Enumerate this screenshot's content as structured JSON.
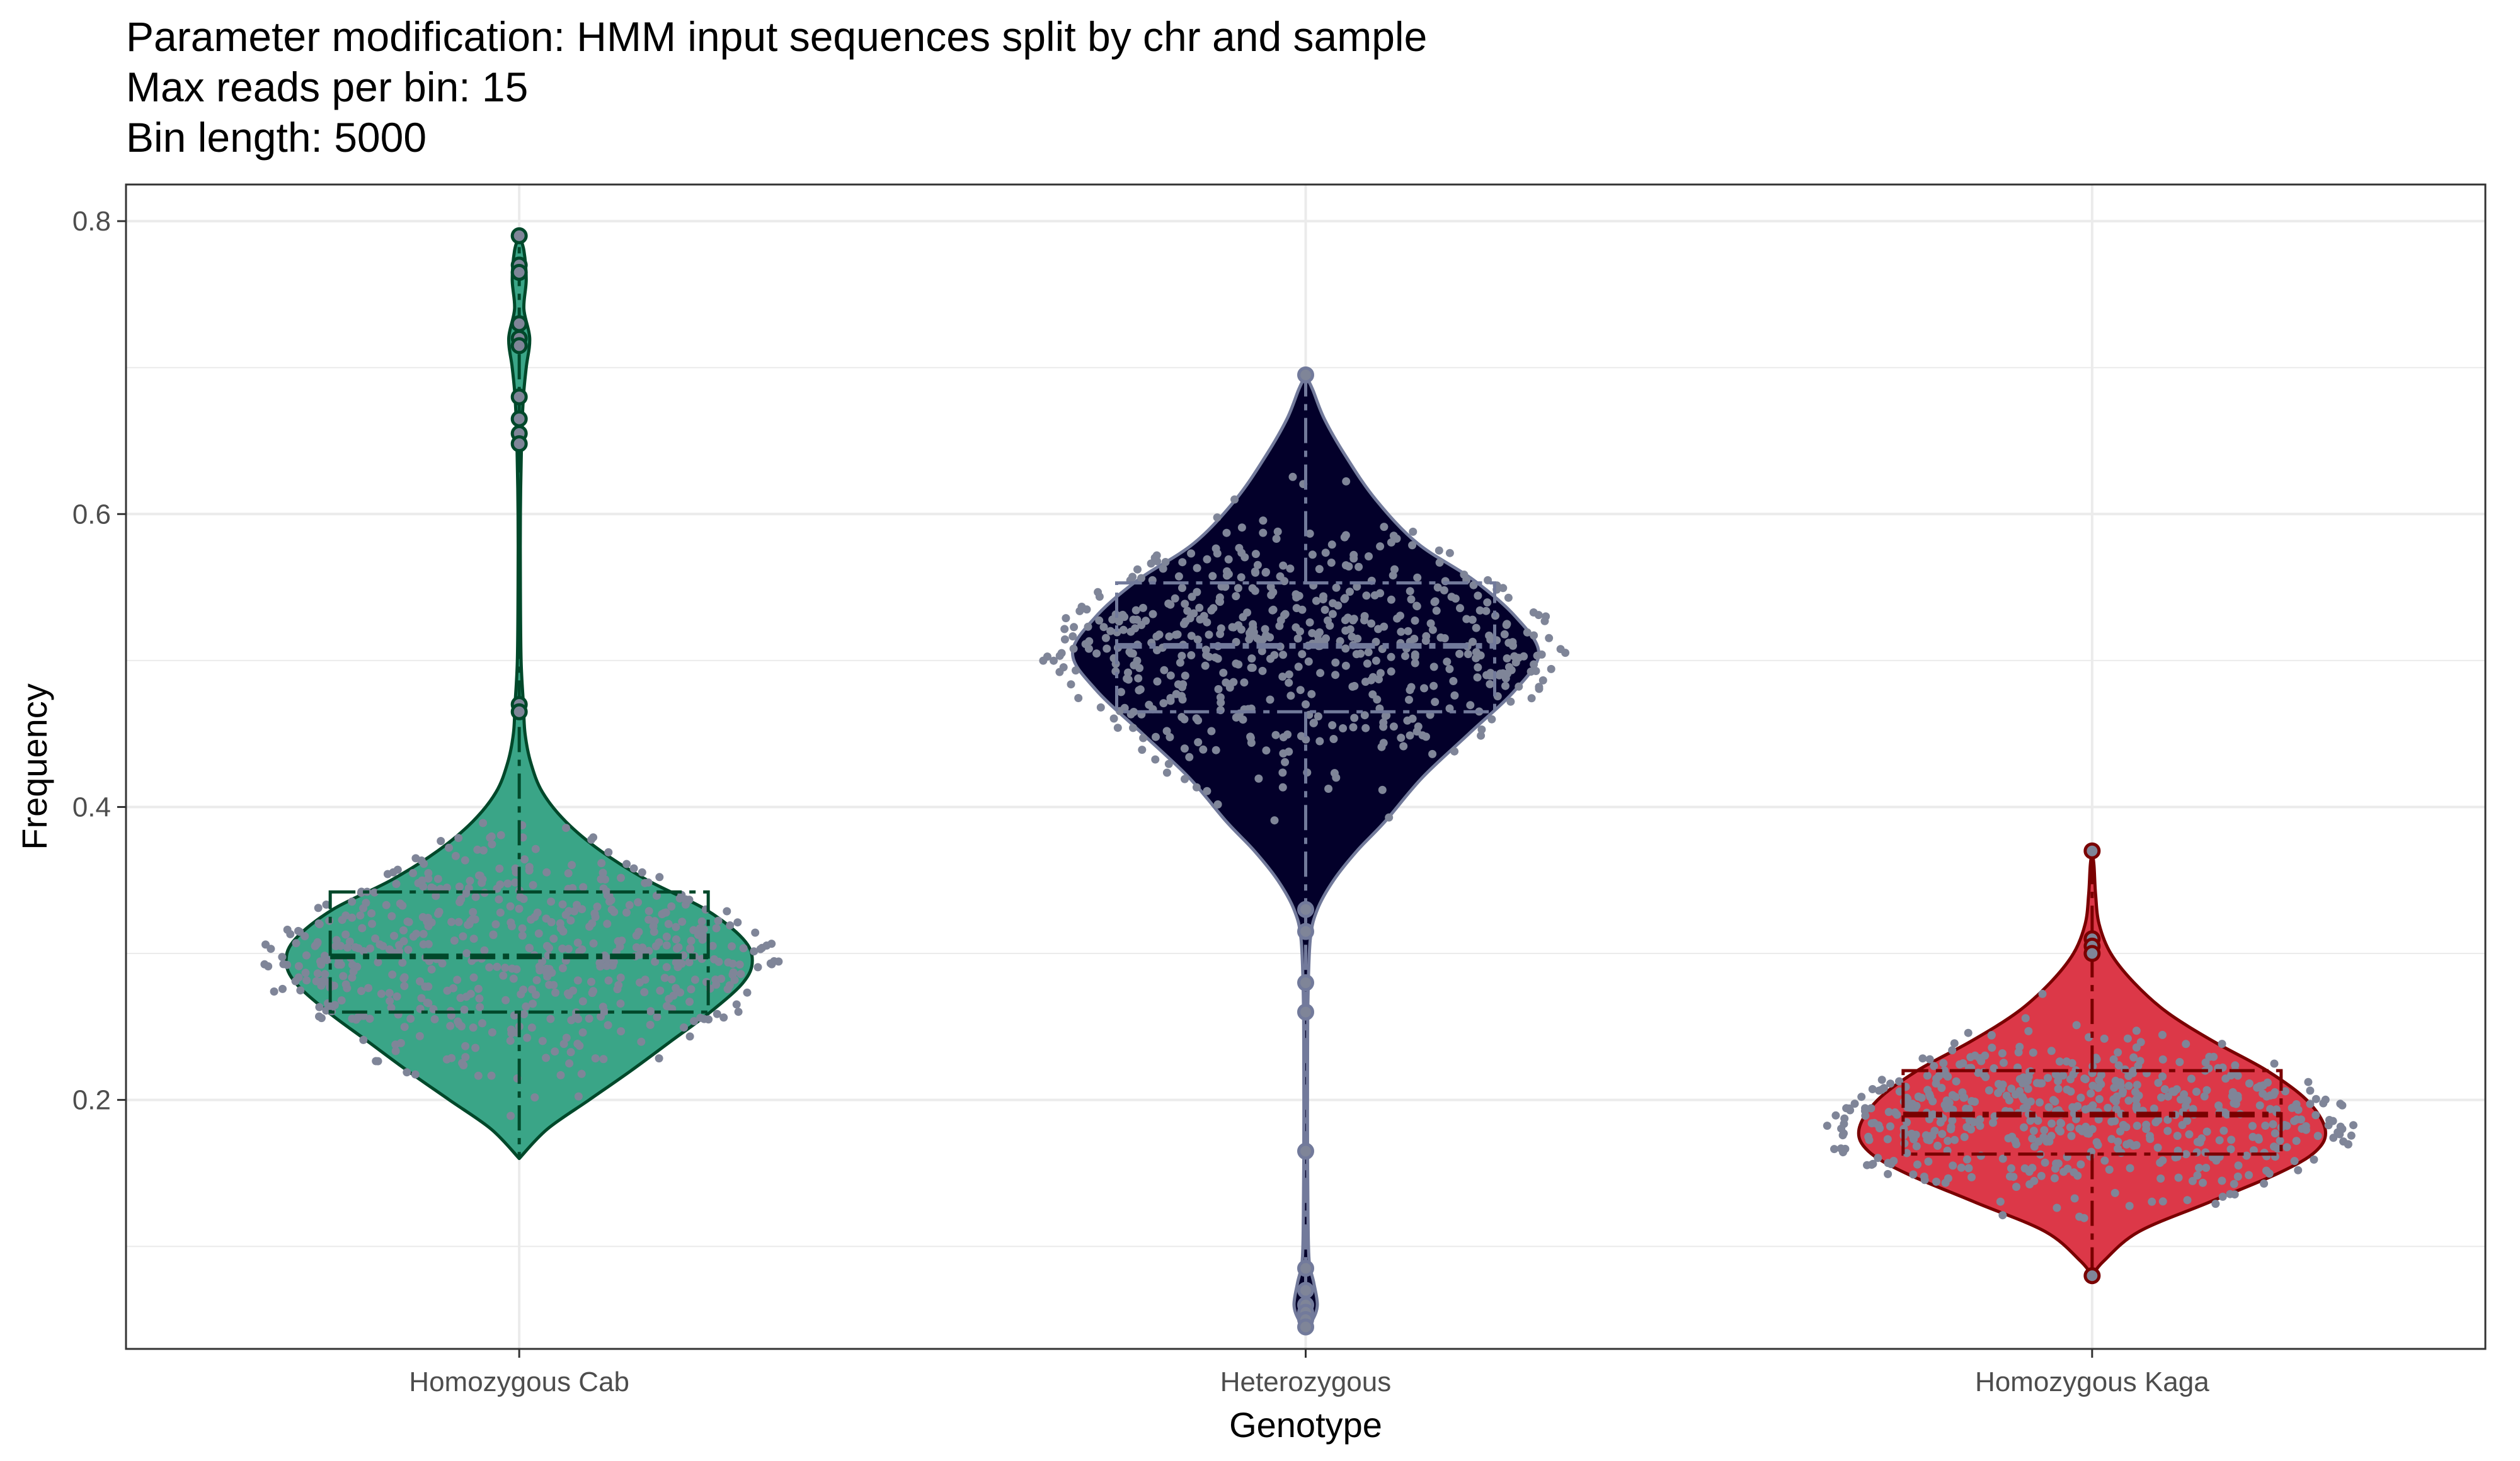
{
  "chart_data": {
    "type": "violin",
    "title_lines": [
      "Parameter modification: HMM input sequences split by chr and sample",
      "Max reads per bin: 15",
      "Bin length: 5000"
    ],
    "xlabel": "Genotype",
    "ylabel": "Frequency",
    "ylim": [
      0.03,
      0.825
    ],
    "yticks": [
      0.2,
      0.4,
      0.6,
      0.8
    ],
    "y_tick_labels": [
      "0.2",
      "0.4",
      "0.6",
      "0.8"
    ],
    "grid": true,
    "legend": "none",
    "categories": [
      "Homozygous Cab",
      "Heterozygous",
      "Homozygous Kaga"
    ],
    "series": [
      {
        "category": "Homozygous Cab",
        "fill": "#3aa587",
        "outline": "#00482a",
        "min": 0.16,
        "q1": 0.26,
        "median": 0.298,
        "q3": 0.342,
        "max": 0.79,
        "density": [
          [
            0.16,
            0.0
          ],
          [
            0.18,
            0.12
          ],
          [
            0.2,
            0.3
          ],
          [
            0.22,
            0.48
          ],
          [
            0.24,
            0.65
          ],
          [
            0.26,
            0.82
          ],
          [
            0.28,
            0.96
          ],
          [
            0.295,
            1.0
          ],
          [
            0.31,
            0.96
          ],
          [
            0.33,
            0.8
          ],
          [
            0.35,
            0.55
          ],
          [
            0.37,
            0.35
          ],
          [
            0.39,
            0.2
          ],
          [
            0.41,
            0.1
          ],
          [
            0.43,
            0.05
          ],
          [
            0.45,
            0.025
          ],
          [
            0.47,
            0.018
          ],
          [
            0.5,
            0.008
          ],
          [
            0.55,
            0.005
          ],
          [
            0.6,
            0.005
          ],
          [
            0.65,
            0.01
          ],
          [
            0.68,
            0.018
          ],
          [
            0.7,
            0.03
          ],
          [
            0.72,
            0.045
          ],
          [
            0.74,
            0.02
          ],
          [
            0.76,
            0.03
          ],
          [
            0.78,
            0.02
          ],
          [
            0.79,
            0.0
          ]
        ],
        "outliers": [
          0.79,
          0.77,
          0.765,
          0.73,
          0.72,
          0.715,
          0.68,
          0.665,
          0.655,
          0.648,
          0.47,
          0.465
        ]
      },
      {
        "category": "Heterozygous",
        "fill": "#03002a",
        "outline": "#727a9b",
        "min": 0.045,
        "q1": 0.465,
        "median": 0.51,
        "q3": 0.553,
        "max": 0.695,
        "density": [
          [
            0.045,
            0.0
          ],
          [
            0.05,
            0.03
          ],
          [
            0.06,
            0.05
          ],
          [
            0.075,
            0.035
          ],
          [
            0.09,
            0.015
          ],
          [
            0.12,
            0.01
          ],
          [
            0.17,
            0.008
          ],
          [
            0.22,
            0.008
          ],
          [
            0.27,
            0.01
          ],
          [
            0.31,
            0.02
          ],
          [
            0.33,
            0.05
          ],
          [
            0.35,
            0.12
          ],
          [
            0.37,
            0.22
          ],
          [
            0.39,
            0.34
          ],
          [
            0.42,
            0.5
          ],
          [
            0.45,
            0.7
          ],
          [
            0.48,
            0.9
          ],
          [
            0.505,
            1.0
          ],
          [
            0.53,
            0.9
          ],
          [
            0.555,
            0.72
          ],
          [
            0.58,
            0.48
          ],
          [
            0.61,
            0.3
          ],
          [
            0.64,
            0.17
          ],
          [
            0.665,
            0.08
          ],
          [
            0.685,
            0.03
          ],
          [
            0.695,
            0.0
          ]
        ],
        "outliers": [
          0.695,
          0.33,
          0.315,
          0.28,
          0.26,
          0.165,
          0.085,
          0.07,
          0.06,
          0.055,
          0.05,
          0.045
        ]
      },
      {
        "category": "Homozygous Kaga",
        "fill": "#dc3848",
        "outline": "#7a0000",
        "min": 0.08,
        "q1": 0.163,
        "median": 0.19,
        "q3": 0.22,
        "max": 0.37,
        "density": [
          [
            0.08,
            0.0
          ],
          [
            0.09,
            0.05
          ],
          [
            0.11,
            0.2
          ],
          [
            0.13,
            0.5
          ],
          [
            0.15,
            0.8
          ],
          [
            0.165,
            0.96
          ],
          [
            0.18,
            1.0
          ],
          [
            0.2,
            0.92
          ],
          [
            0.22,
            0.75
          ],
          [
            0.24,
            0.52
          ],
          [
            0.26,
            0.32
          ],
          [
            0.28,
            0.18
          ],
          [
            0.3,
            0.08
          ],
          [
            0.32,
            0.03
          ],
          [
            0.34,
            0.015
          ],
          [
            0.36,
            0.008
          ],
          [
            0.37,
            0.0
          ]
        ],
        "outliers": [
          0.37,
          0.31,
          0.305,
          0.3,
          0.08
        ]
      }
    ],
    "jitter_color": "#7f8598"
  }
}
